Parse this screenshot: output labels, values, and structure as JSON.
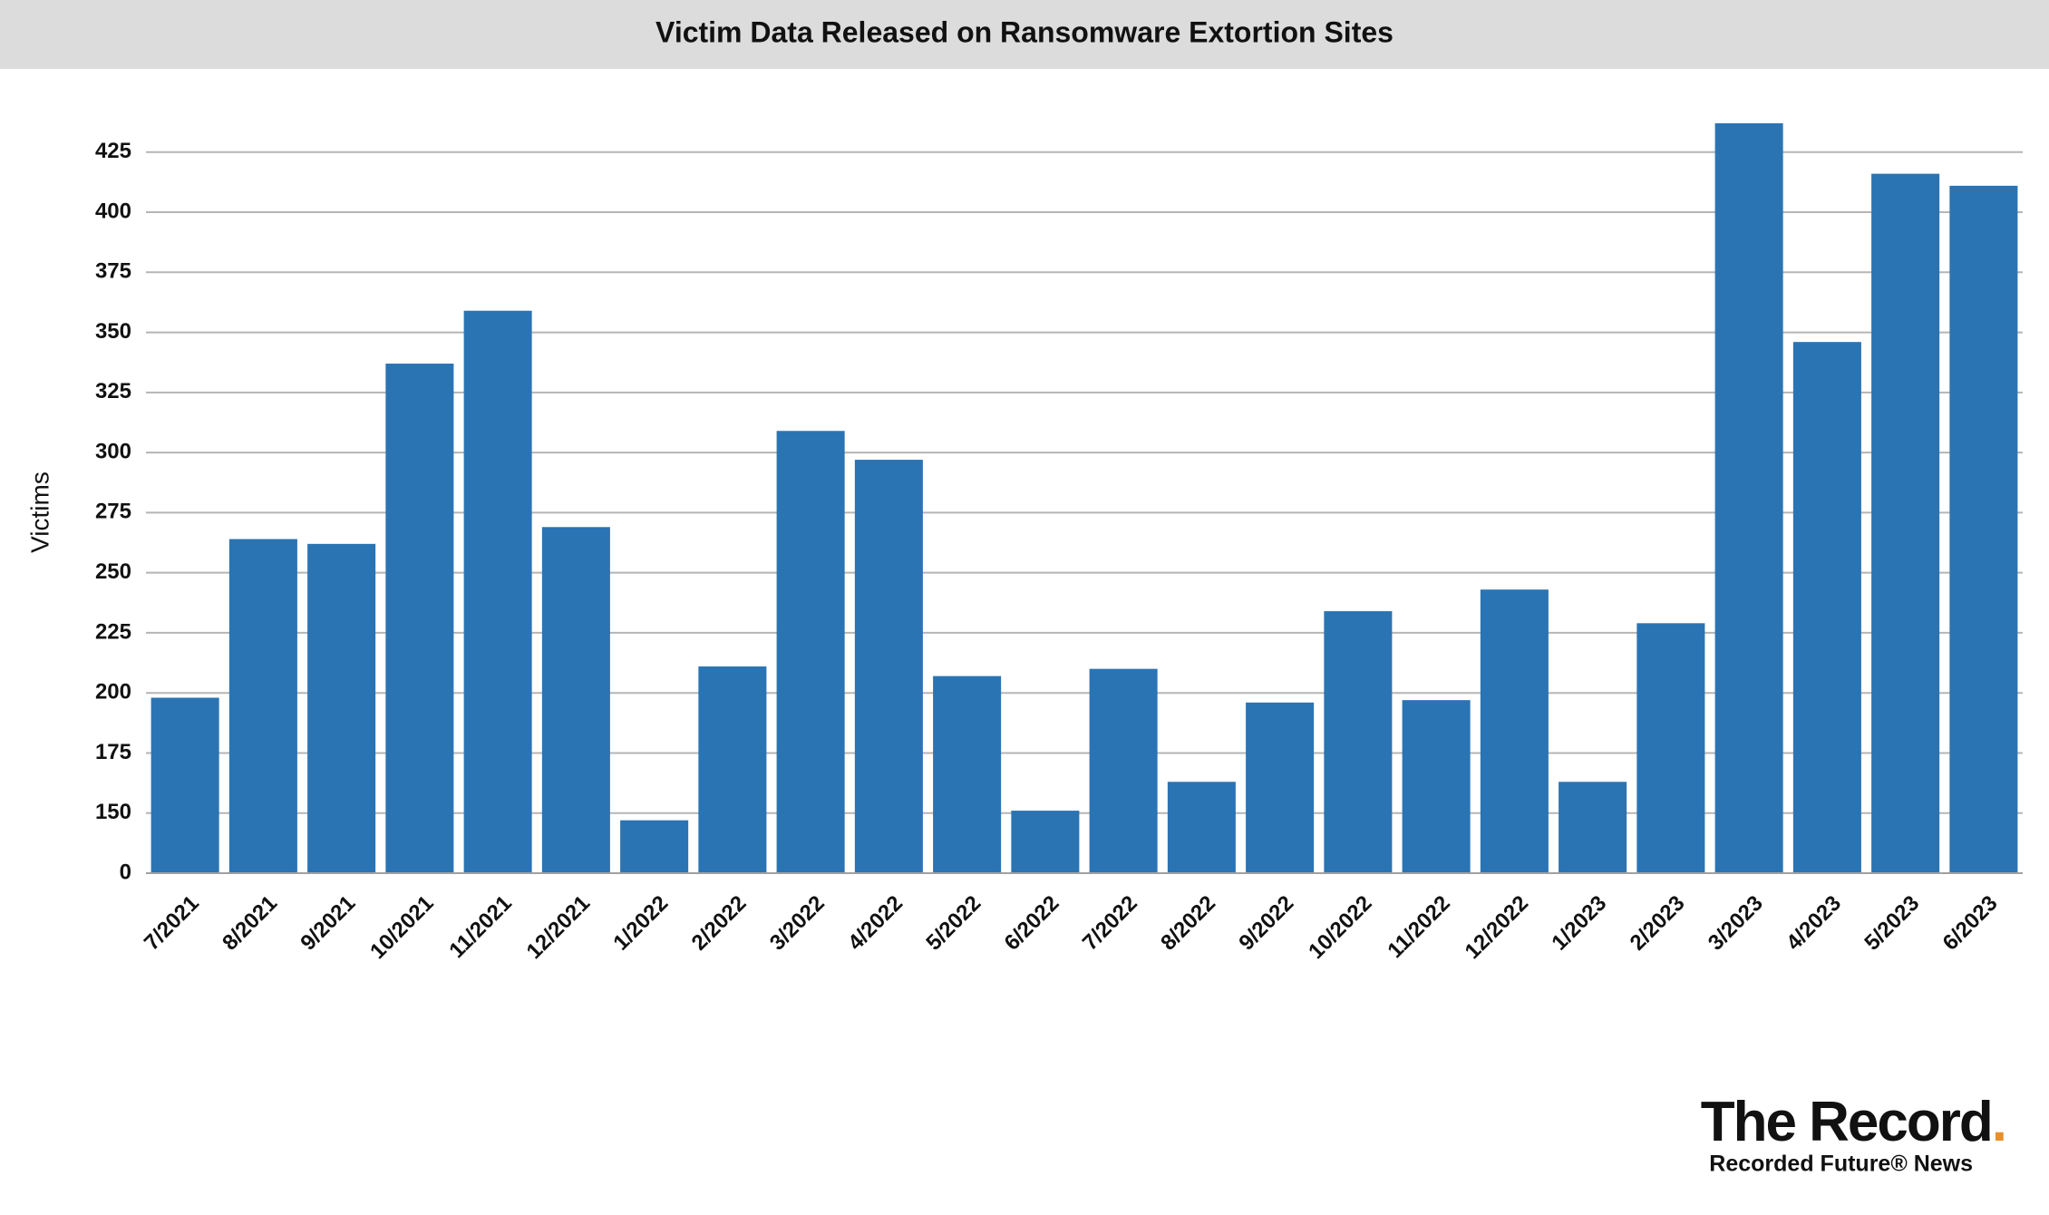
{
  "chart_data": {
    "type": "bar",
    "title": "Victim Data Released on Ransomware Extortion Sites",
    "y_label": "Victims",
    "categories": [
      "7/2021",
      "8/2021",
      "9/2021",
      "10/2021",
      "11/2021",
      "12/2021",
      "1/2022",
      "2/2022",
      "3/2022",
      "4/2022",
      "5/2022",
      "6/2022",
      "7/2022",
      "8/2022",
      "9/2022",
      "10/2022",
      "11/2022",
      "12/2022",
      "1/2023",
      "2/2023",
      "3/2023",
      "4/2023",
      "5/2023",
      "6/2023"
    ],
    "values": [
      198,
      264,
      262,
      337,
      359,
      269,
      147,
      211,
      309,
      297,
      207,
      151,
      210,
      163,
      196,
      234,
      197,
      243,
      163,
      229,
      437,
      346,
      416,
      411
    ],
    "color": "#2a74b4",
    "ylim": [
      0,
      440
    ],
    "axis_break": [
      0,
      125
    ],
    "yticks": [
      0,
      150,
      175,
      200,
      225,
      250,
      275,
      300,
      325,
      350,
      375,
      400,
      425
    ],
    "grid": true
  },
  "logo": {
    "name": "The Record",
    "dot": ".",
    "subtitle": "Recorded Future® News"
  }
}
